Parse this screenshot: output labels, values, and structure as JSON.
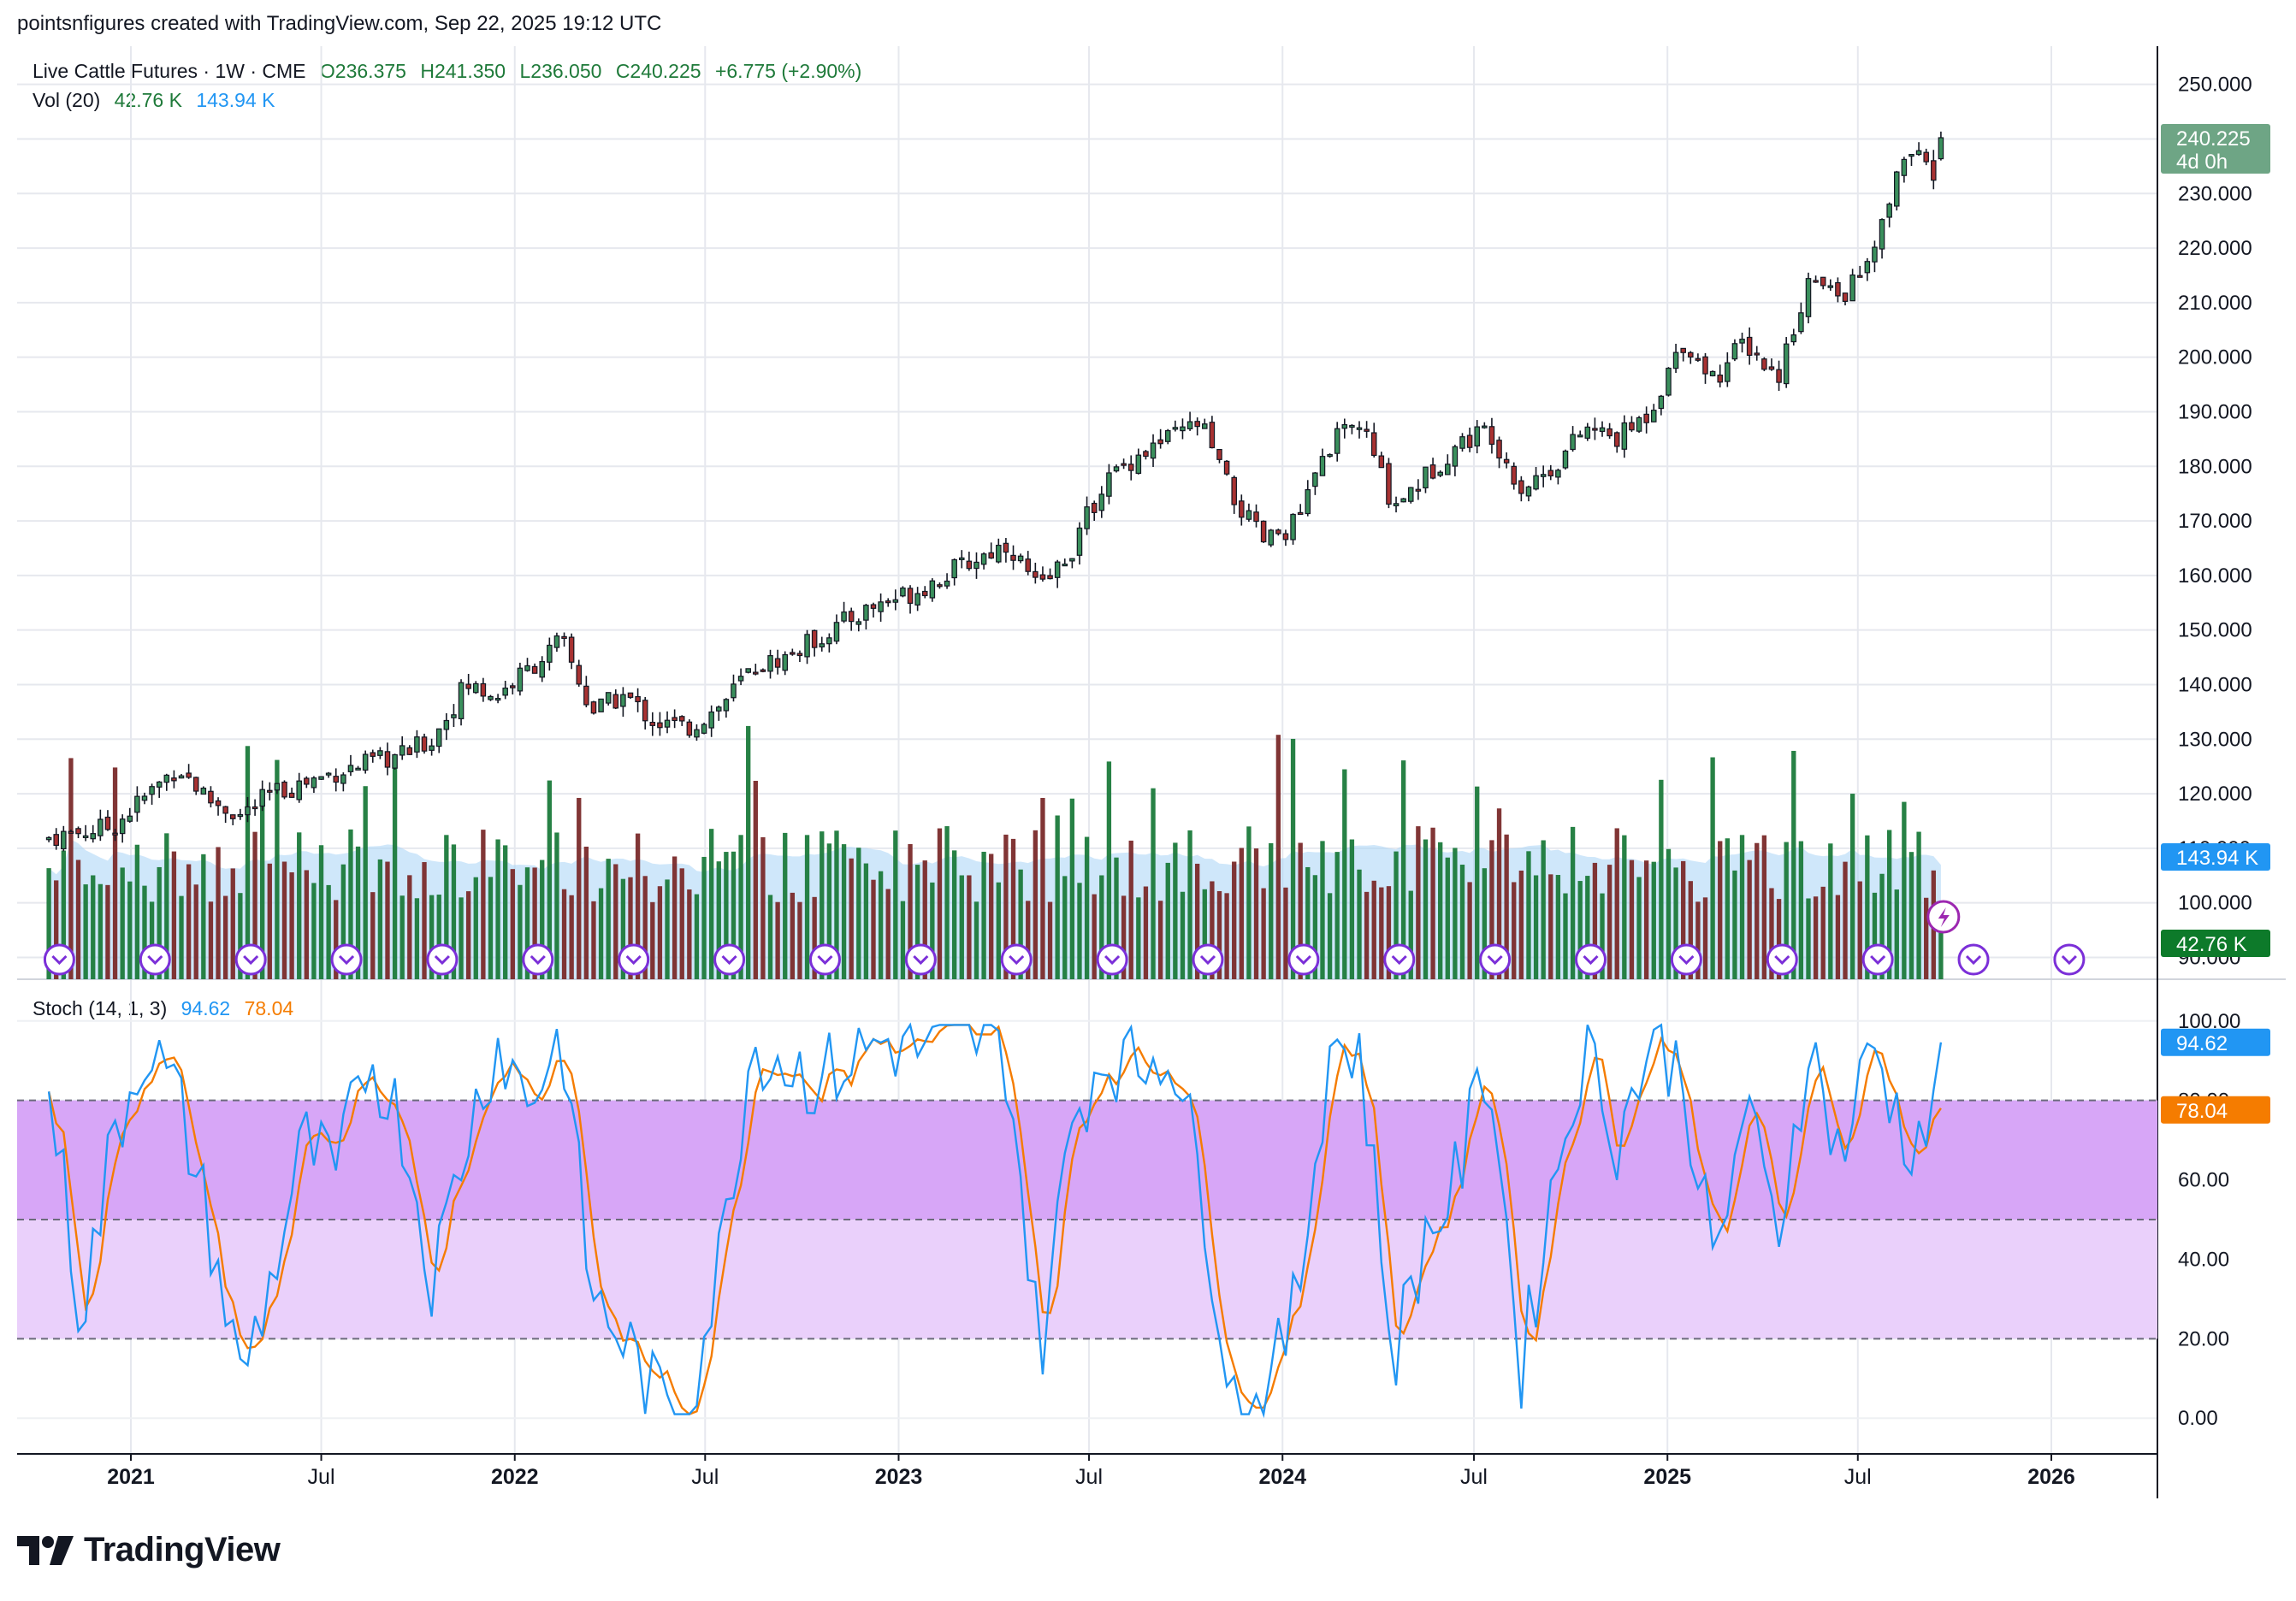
{
  "header": {
    "credit": "pointsnfigures created with TradingView.com, Sep 22, 2025 19:12 UTC"
  },
  "legend": {
    "symbol": "Live Cattle Futures · 1W · CME",
    "open": "O236.375",
    "high": "H241.350",
    "low": "L236.050",
    "close": "C240.225",
    "change": "+6.775 (+2.90%)",
    "vol_label": "Vol (20)",
    "vol_value": "42.76 K",
    "vol_ma": "143.94 K",
    "stoch_label": "Stoch (14, 1, 3)",
    "stoch_k": "94.62",
    "stoch_d": "78.04"
  },
  "badges": {
    "last_price": "240.225",
    "countdown": "4d 0h",
    "vol_ma": "143.94 K",
    "vol": "42.76 K",
    "stoch_k": "94.62",
    "stoch_d": "78.04"
  },
  "colors": {
    "up": "#1e8a46",
    "down": "#8b1a1a",
    "up_fill": "#3a8f5c",
    "down_fill": "#a83232",
    "vol_up": "#1b7a3b",
    "vol_down": "#7a2a2a",
    "vol_ma_fill": "#a8d4f5",
    "stoch_k": "#2196f3",
    "stoch_d": "#f57c00",
    "stoch_band_upper": "#d7a6f7",
    "stoch_band_lower": "#ead0fb",
    "event_icon": "#7b2fd8",
    "price_badge": "#6ea585"
  },
  "brand": {
    "name": "TradingView"
  },
  "chart_data": [
    {
      "type": "candlestick",
      "title": "Live Cattle Futures · 1W · CME",
      "x_axis": {
        "tick_labels": [
          "2021",
          "Jul",
          "2022",
          "Jul",
          "2023",
          "Jul",
          "2024",
          "Jul",
          "2025",
          "Jul",
          "2026"
        ],
        "range": [
          "2020-10",
          "2026-04"
        ]
      },
      "y_axis": {
        "tick_labels": [
          "90.000",
          "100.000",
          "110.000",
          "120.000",
          "130.000",
          "140.000",
          "150.000",
          "160.000",
          "170.000",
          "180.000",
          "190.000",
          "200.000",
          "210.000",
          "220.000",
          "230.000",
          "240.000",
          "250.000"
        ],
        "range": [
          86,
          257
        ],
        "position": "right",
        "scale": "linear"
      },
      "grid": true,
      "series": [
        {
          "name": "Live Cattle Futures",
          "anchor_points": [
            {
              "date": "2020-10",
              "close": 112
            },
            {
              "date": "2020-12",
              "close": 114
            },
            {
              "date": "2021-02",
              "close": 125
            },
            {
              "date": "2021-03",
              "close": 119
            },
            {
              "date": "2021-04",
              "close": 116
            },
            {
              "date": "2021-05",
              "close": 120
            },
            {
              "date": "2021-07",
              "close": 124
            },
            {
              "date": "2021-09",
              "close": 127
            },
            {
              "date": "2021-10",
              "close": 130
            },
            {
              "date": "2021-11",
              "close": 140
            },
            {
              "date": "2021-12",
              "close": 138
            },
            {
              "date": "2022-02",
              "close": 148
            },
            {
              "date": "2022-03",
              "close": 135
            },
            {
              "date": "2022-04",
              "close": 138
            },
            {
              "date": "2022-05",
              "close": 133
            },
            {
              "date": "2022-06",
              "close": 132
            },
            {
              "date": "2022-07",
              "close": 136
            },
            {
              "date": "2022-08",
              "close": 143
            },
            {
              "date": "2022-09",
              "close": 145
            },
            {
              "date": "2022-11",
              "close": 152
            },
            {
              "date": "2022-12",
              "close": 155
            },
            {
              "date": "2023-01",
              "close": 157
            },
            {
              "date": "2023-03",
              "close": 163
            },
            {
              "date": "2023-04",
              "close": 166
            },
            {
              "date": "2023-05",
              "close": 157
            },
            {
              "date": "2023-06",
              "close": 165
            },
            {
              "date": "2023-07",
              "close": 177
            },
            {
              "date": "2023-08",
              "close": 182
            },
            {
              "date": "2023-09",
              "close": 185
            },
            {
              "date": "2023-10",
              "close": 188
            },
            {
              "date": "2023-11",
              "close": 174
            },
            {
              "date": "2023-12",
              "close": 166
            },
            {
              "date": "2024-01",
              "close": 170
            },
            {
              "date": "2024-02",
              "close": 184
            },
            {
              "date": "2024-03",
              "close": 188
            },
            {
              "date": "2024-04",
              "close": 173
            },
            {
              "date": "2024-05",
              "close": 178
            },
            {
              "date": "2024-06",
              "close": 184
            },
            {
              "date": "2024-07",
              "close": 187
            },
            {
              "date": "2024-08",
              "close": 176
            },
            {
              "date": "2024-09",
              "close": 180
            },
            {
              "date": "2024-10",
              "close": 187
            },
            {
              "date": "2024-11",
              "close": 185
            },
            {
              "date": "2024-12",
              "close": 190
            },
            {
              "date": "2025-01",
              "close": 203
            },
            {
              "date": "2025-02",
              "close": 196
            },
            {
              "date": "2025-03",
              "close": 203
            },
            {
              "date": "2025-04",
              "close": 196
            },
            {
              "date": "2025-05",
              "close": 214
            },
            {
              "date": "2025-06",
              "close": 211
            },
            {
              "date": "2025-07",
              "close": 218
            },
            {
              "date": "2025-08",
              "close": 238
            },
            {
              "date": "2025-09",
              "close": 233
            },
            {
              "date": "2025-09-22",
              "close": 240.225
            }
          ],
          "last_bar": {
            "open": 236.375,
            "high": 241.35,
            "low": 236.05,
            "close": 240.225
          }
        },
        {
          "name": "Vol (20)",
          "type": "bar",
          "last_value": "42.76 K",
          "ma_value": "143.94 K",
          "max_approx": 160000
        }
      ]
    },
    {
      "type": "line",
      "title": "Stoch (14, 1, 3)",
      "y_axis": {
        "tick_labels": [
          "0.00",
          "20.00",
          "40.00",
          "60.00",
          "80.00",
          "100.00"
        ],
        "range": [
          -9,
          109
        ],
        "position": "right"
      },
      "bands": [
        20,
        50,
        80
      ],
      "series": [
        {
          "name": "%K",
          "last": 94.62
        },
        {
          "name": "%D",
          "last": 78.04
        }
      ],
      "k_anchor_points": [
        {
          "date": "2020-10",
          "value": 85
        },
        {
          "date": "2020-11",
          "value": 25
        },
        {
          "date": "2020-12",
          "value": 70
        },
        {
          "date": "2021-01",
          "value": 95
        },
        {
          "date": "2021-02",
          "value": 80
        },
        {
          "date": "2021-03",
          "value": 50
        },
        {
          "date": "2021-04",
          "value": 10
        },
        {
          "date": "2021-05",
          "value": 35
        },
        {
          "date": "2021-06",
          "value": 70
        },
        {
          "date": "2021-07",
          "value": 60
        },
        {
          "date": "2021-08",
          "value": 92
        },
        {
          "date": "2021-09",
          "value": 75
        },
        {
          "date": "2021-10",
          "value": 35
        },
        {
          "date": "2021-11",
          "value": 70
        },
        {
          "date": "2021-12",
          "value": 95
        },
        {
          "date": "2022-01",
          "value": 80
        },
        {
          "date": "2022-02",
          "value": 97
        },
        {
          "date": "2022-03",
          "value": 30
        },
        {
          "date": "2022-04",
          "value": 20
        },
        {
          "date": "2022-05",
          "value": 5
        },
        {
          "date": "2022-06",
          "value": 3
        },
        {
          "date": "2022-07",
          "value": 40
        },
        {
          "date": "2022-08",
          "value": 95
        },
        {
          "date": "2022-10",
          "value": 85
        },
        {
          "date": "2022-12",
          "value": 95
        },
        {
          "date": "2023-02",
          "value": 92
        },
        {
          "date": "2023-03",
          "value": 96
        },
        {
          "date": "2023-04",
          "value": 90
        },
        {
          "date": "2023-05",
          "value": 15
        },
        {
          "date": "2023-06",
          "value": 75
        },
        {
          "date": "2023-07",
          "value": 92
        },
        {
          "date": "2023-08",
          "value": 88
        },
        {
          "date": "2023-09",
          "value": 95
        },
        {
          "date": "2023-10",
          "value": 60
        },
        {
          "date": "2023-11",
          "value": 5
        },
        {
          "date": "2023-12",
          "value": 3
        },
        {
          "date": "2024-01",
          "value": 30
        },
        {
          "date": "2024-02",
          "value": 95
        },
        {
          "date": "2024-03",
          "value": 92
        },
        {
          "date": "2024-04",
          "value": 15
        },
        {
          "date": "2024-05",
          "value": 45
        },
        {
          "date": "2024-06",
          "value": 60
        },
        {
          "date": "2024-07",
          "value": 92
        },
        {
          "date": "2024-08",
          "value": 12
        },
        {
          "date": "2024-09",
          "value": 60
        },
        {
          "date": "2024-10",
          "value": 95
        },
        {
          "date": "2024-11",
          "value": 70
        },
        {
          "date": "2024-12",
          "value": 95
        },
        {
          "date": "2025-01",
          "value": 88
        },
        {
          "date": "2025-02",
          "value": 35
        },
        {
          "date": "2025-03",
          "value": 80
        },
        {
          "date": "2025-04",
          "value": 45
        },
        {
          "date": "2025-05",
          "value": 95
        },
        {
          "date": "2025-06",
          "value": 65
        },
        {
          "date": "2025-07",
          "value": 95
        },
        {
          "date": "2025-08",
          "value": 70
        },
        {
          "date": "2025-09",
          "value": 75
        },
        {
          "date": "2025-09-22",
          "value": 94.62
        }
      ]
    }
  ]
}
